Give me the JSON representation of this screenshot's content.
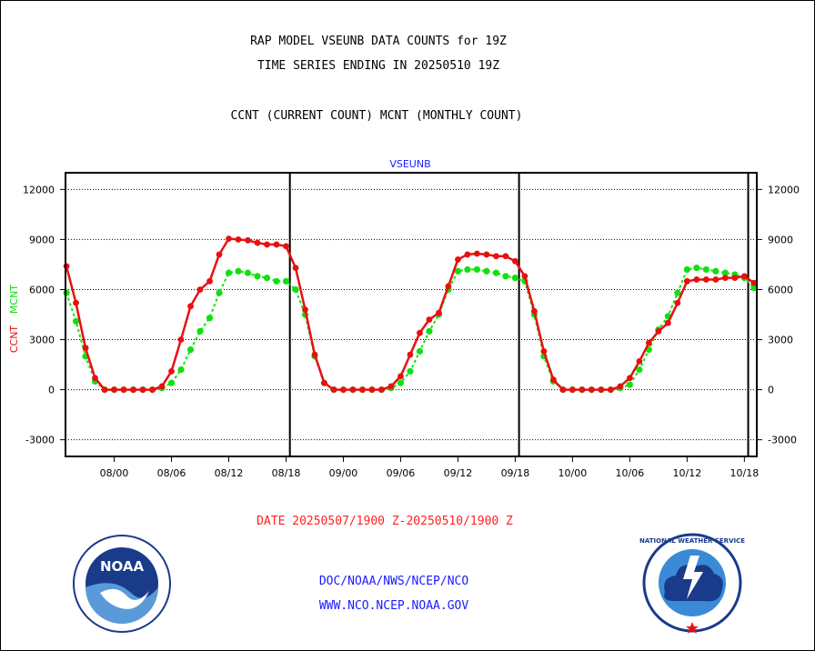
{
  "header": {
    "title_line1": "RAP MODEL VSEUNB DATA COUNTS for 19Z",
    "title_line2": "TIME SERIES ENDING IN 20250510 19Z",
    "subtitle": "CCNT (CURRENT COUNT) MCNT (MONTHLY COUNT)"
  },
  "footer": {
    "date_range": "DATE 20250507/1900 Z-20250510/1900 Z",
    "link_doc": "DOC/NOAA/NWS/NCEP/NCO",
    "link_www": "WWW.NCO.NCEP.NOAA.GOV"
  },
  "logos": {
    "left": "NOAA",
    "right": "NATIONAL WEATHER SERVICE"
  },
  "colors": {
    "ccnt": "#e81010",
    "mcnt": "#10e010",
    "grid": "#000000",
    "series_label": "#1a1aff"
  },
  "chart_data": {
    "type": "line",
    "title": "VSEUNB",
    "ylabel_left_red": "CCNT",
    "ylabel_left_green": "MCNT",
    "ylim": [
      -4000,
      13000
    ],
    "yticks": [
      -3000,
      0,
      3000,
      6000,
      9000,
      12000
    ],
    "ytick_labels": [
      "-3000",
      "0",
      "3000",
      "6000",
      "9000",
      "12000"
    ],
    "xlim": [
      -0.1,
      72.3
    ],
    "xticks": [
      5,
      11,
      17,
      23,
      29,
      35,
      41,
      47,
      53,
      59,
      65,
      71
    ],
    "xtick_labels": [
      "08/00",
      "08/06",
      "08/12",
      "08/18",
      "09/00",
      "09/06",
      "09/12",
      "09/18",
      "10/00",
      "10/06",
      "10/12",
      "10/18"
    ],
    "day_boundaries": [
      23.4,
      47.4,
      71.4
    ],
    "series": [
      {
        "name": "CCNT",
        "color": "#e81010",
        "values": [
          7400,
          5200,
          2500,
          700,
          0,
          0,
          0,
          0,
          0,
          0,
          200,
          1100,
          3000,
          5000,
          6000,
          6500,
          8100,
          9050,
          9000,
          8950,
          8800,
          8700,
          8700,
          8600,
          7300,
          4800,
          2100,
          400,
          0,
          0,
          0,
          0,
          0,
          0,
          200,
          800,
          2100,
          3400,
          4200,
          4600,
          6200,
          7800,
          8100,
          8150,
          8100,
          8000,
          8000,
          7700,
          6800,
          4700,
          2300,
          600,
          0,
          0,
          0,
          0,
          0,
          0,
          200,
          700,
          1700,
          2800,
          3500,
          4000,
          5200,
          6500,
          6600,
          6600,
          6600,
          6700,
          6700,
          6800,
          6400
        ]
      },
      {
        "name": "MCNT",
        "color": "#10e010",
        "values": [
          5800,
          4100,
          2000,
          500,
          0,
          0,
          0,
          0,
          0,
          0,
          100,
          400,
          1200,
          2400,
          3500,
          4300,
          5800,
          7000,
          7100,
          7000,
          6800,
          6700,
          6500,
          6500,
          6000,
          4500,
          2000,
          400,
          0,
          0,
          0,
          0,
          0,
          0,
          100,
          400,
          1100,
          2300,
          3500,
          4500,
          6000,
          7100,
          7200,
          7200,
          7100,
          7000,
          6800,
          6700,
          6500,
          4500,
          2000,
          500,
          0,
          0,
          0,
          0,
          0,
          0,
          100,
          300,
          1200,
          2400,
          3600,
          4400,
          5800,
          7200,
          7300,
          7200,
          7100,
          7000,
          6900,
          6700,
          6100
        ]
      }
    ]
  }
}
